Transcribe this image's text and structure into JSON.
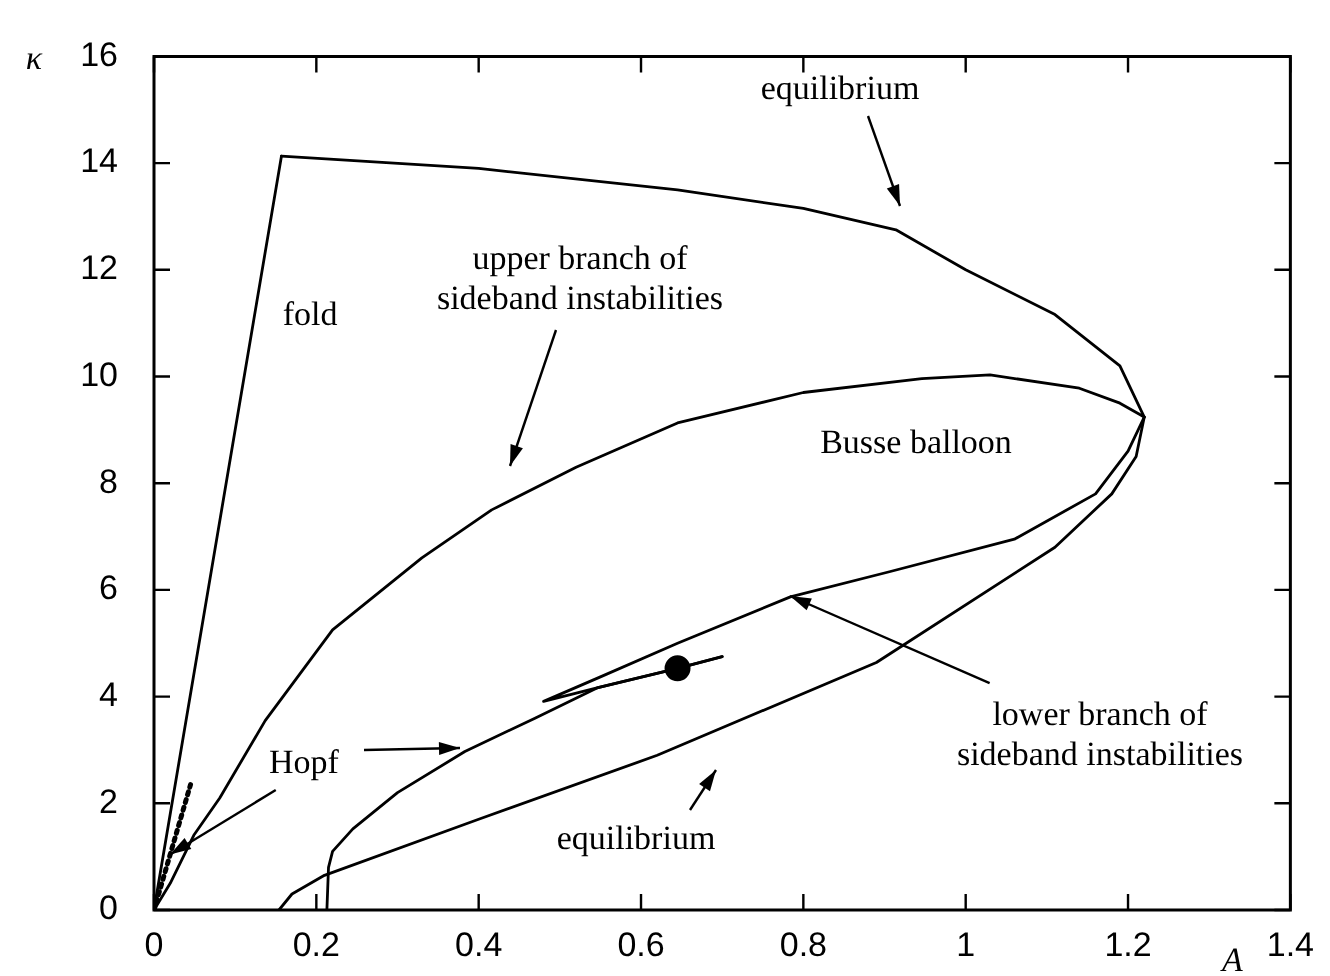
{
  "chart_data": {
    "type": "line",
    "xlabel": "A",
    "ylabel": "κ",
    "xlim": [
      0,
      1.4
    ],
    "xticks": [
      0,
      0.2,
      0.4,
      0.6,
      0.8,
      1,
      1.2,
      1.4
    ],
    "ylim": [
      0,
      16
    ],
    "yticks": [
      0,
      2,
      4,
      6,
      8,
      10,
      12,
      14,
      16
    ],
    "series": [
      {
        "color": "#000000",
        "x": [
          0,
          0.157
        ],
        "values": [
          0,
          14.13
        ]
      },
      {
        "color": "#000000",
        "x": [
          0.157,
          0.4,
          0.645,
          0.8,
          0.914,
          1.0,
          1.11,
          1.19,
          1.22,
          1.21,
          1.18,
          1.11,
          0.89,
          0.62,
          0.4,
          0.21,
          0.17,
          0.154
        ],
        "values": [
          14.13,
          13.9,
          13.5,
          13.15,
          12.75,
          12.0,
          11.16,
          10.2,
          9.24,
          8.5,
          7.8,
          6.8,
          4.64,
          2.9,
          1.7,
          0.65,
          0.3,
          0
        ]
      },
      {
        "color": "#000000",
        "x": [
          0,
          0.02,
          0.049,
          0.081,
          0.137,
          0.22,
          0.33,
          0.416,
          0.52,
          0.645,
          0.8,
          0.946,
          1.03,
          1.14,
          1.19,
          1.22
        ],
        "values": [
          0,
          0.5,
          1.4,
          2.1,
          3.55,
          5.25,
          6.6,
          7.5,
          8.3,
          9.13,
          9.7,
          9.96,
          10.03,
          9.78,
          9.5,
          9.24
        ]
      },
      {
        "color": "#000000",
        "x": [
          1.22,
          1.2,
          1.16,
          1.06,
          0.906,
          0.784,
          0.645,
          0.55,
          0.48,
          0.547,
          0.645,
          0.7
        ],
        "values": [
          9.24,
          8.6,
          7.8,
          6.95,
          6.34,
          5.87,
          5.0,
          4.37,
          3.91,
          4.17,
          4.53,
          4.75
        ]
      },
      {
        "color": "#000000",
        "x": [
          0.213,
          0.215,
          0.22,
          0.245,
          0.3,
          0.383,
          0.47,
          0.547,
          0.645,
          0.7
        ],
        "values": [
          0,
          0.8,
          1.1,
          1.52,
          2.2,
          2.97,
          3.6,
          4.17,
          4.53,
          4.75
        ]
      },
      {
        "color": "#000000",
        "x": [
          0,
          0.045
        ],
        "values": [
          0,
          2.35
        ],
        "line_style": "dotted"
      },
      {
        "type": "scatter",
        "color": "#000000",
        "x": [
          0.645
        ],
        "values": [
          4.53
        ],
        "marker": "circle"
      }
    ],
    "annotations": [
      "equilibrium",
      "upper branch of\nsideband instabilities",
      "fold",
      "Busse balloon",
      {
        "text": "Hopf",
        "x": 0.02,
        "y": 1.04
      },
      {
        "text": "lower branch of\nsideband instabilities",
        "x": 0.784,
        "y": 5.87
      },
      "equilibrium"
    ]
  }
}
